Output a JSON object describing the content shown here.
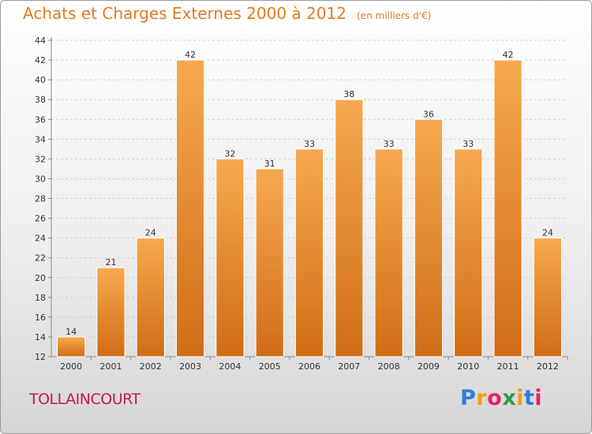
{
  "title": "Achats et Charges Externes 2000 à 2012",
  "subtitle": "(en milliers d'€)",
  "city": "TOLLAINCOURT",
  "logo": {
    "p": "P",
    "r": "r",
    "o": "o",
    "x": "x",
    "i": "i",
    "t": "t",
    "i2": "i"
  },
  "colors": {
    "bar_light": "#f7a94f",
    "bar_dark": "#d06d16",
    "title": "#e07b21",
    "city": "#c2185b"
  },
  "chart_data": {
    "type": "bar",
    "categories": [
      "2000",
      "2001",
      "2002",
      "2003",
      "2004",
      "2005",
      "2006",
      "2007",
      "2008",
      "2009",
      "2010",
      "2011",
      "2012"
    ],
    "values": [
      14,
      21,
      24,
      42,
      32,
      31,
      33,
      38,
      33,
      36,
      33,
      42,
      24
    ],
    "ylim": [
      12,
      44
    ],
    "yticks": [
      12,
      14,
      16,
      18,
      20,
      22,
      24,
      26,
      28,
      30,
      32,
      34,
      36,
      38,
      40,
      42,
      44
    ],
    "grid": true,
    "data_labels": true
  }
}
